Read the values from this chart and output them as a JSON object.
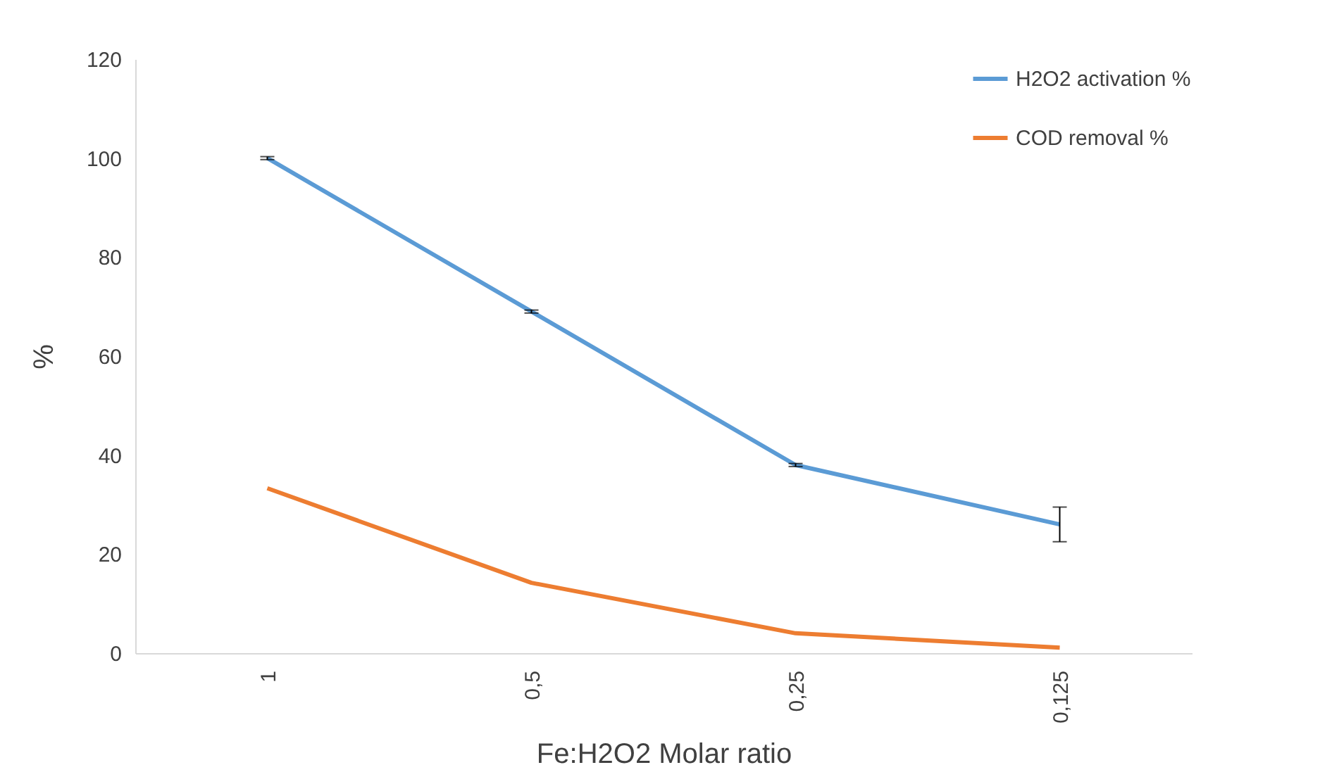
{
  "chart_data": {
    "type": "line",
    "xlabel": "Fe:H2O2 Molar ratio",
    "ylabel": "%",
    "categories": [
      "1",
      "0,5",
      "0,25",
      "0,125"
    ],
    "series": [
      {
        "name": "H2O2 activation %",
        "color": "#5b9bd5",
        "values": [
          100,
          69,
          38,
          26
        ],
        "errors": [
          0.3,
          0.3,
          0.3,
          3.5
        ]
      },
      {
        "name": "COD removal %",
        "color": "#ed7d31",
        "values": [
          33.3,
          14.2,
          4,
          1.1
        ]
      }
    ],
    "ylim": [
      0,
      120
    ],
    "yticks": [
      0,
      20,
      40,
      60,
      80,
      100,
      120
    ],
    "grid": false,
    "legend": "top right",
    "marker": "none",
    "line_style": "solid"
  }
}
